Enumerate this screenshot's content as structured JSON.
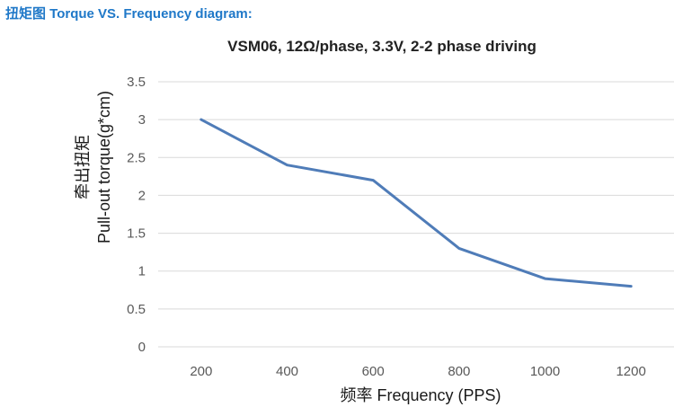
{
  "heading": "扭矩图 Torque VS. Frequency diagram:",
  "chart_data": {
    "type": "line",
    "title": "VSM06, 12Ω/phase, 3.3V, 2-2 phase driving",
    "xlabel": "频率 Frequency (PPS)",
    "ylabel_cn": "牵出扭矩",
    "ylabel": "Pull-out torque(g*cm)",
    "x": [
      200,
      400,
      600,
      800,
      1000,
      1200
    ],
    "x_tick_labels": [
      "200",
      "400",
      "600",
      "800",
      "1000",
      "1200"
    ],
    "y_tick_labels": [
      "0",
      "0.5",
      "1",
      "1.5",
      "2",
      "2.5",
      "3",
      "3.5"
    ],
    "ylim": [
      0,
      3.5
    ],
    "grid": true,
    "legend": "none",
    "series": [
      {
        "values": [
          3.0,
          2.4,
          2.2,
          1.3,
          0.9,
          0.8
        ],
        "color": "#4f7cb8"
      }
    ]
  }
}
